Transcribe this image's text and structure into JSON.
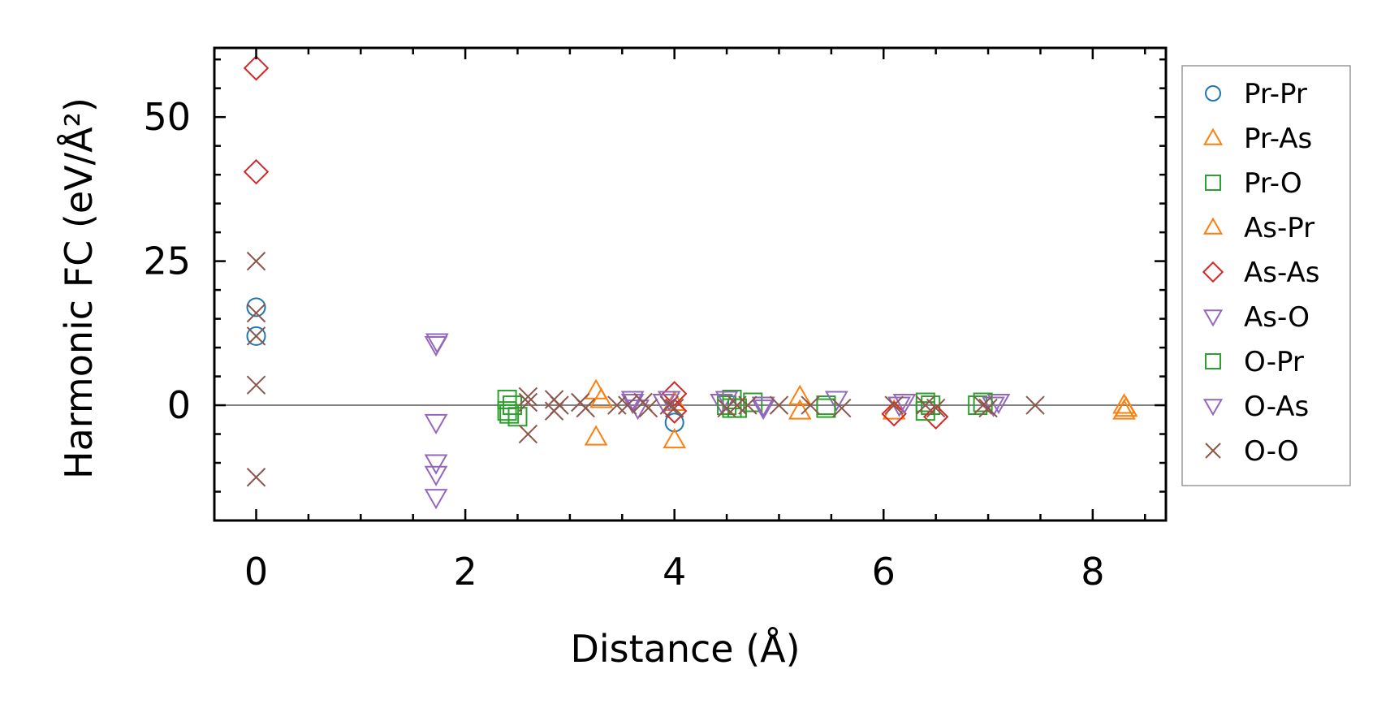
{
  "chart_data": {
    "type": "scatter",
    "title": "",
    "xlabel": "Distance (Å)",
    "ylabel": "Harmonic FC (eV/Å²)",
    "xlim": [
      -0.4,
      8.7
    ],
    "ylim": [
      -20,
      62
    ],
    "xticks": [
      "0",
      "2",
      "4",
      "6",
      "8"
    ],
    "yticks": [
      "0",
      "25",
      "50"
    ],
    "grid": false,
    "legend_position": "outside-right",
    "reference_line_y": 0,
    "series": [
      {
        "name": "Pr-Pr",
        "marker": "circle",
        "color": "#1f77b4",
        "points": [
          [
            0,
            17
          ],
          [
            0,
            12
          ],
          [
            4.0,
            -3
          ]
        ]
      },
      {
        "name": "Pr-As",
        "marker": "triangle-up",
        "color": "#ff7f0e",
        "points": [
          [
            3.25,
            2.5
          ],
          [
            3.25,
            -5.5
          ],
          [
            4.0,
            -6
          ],
          [
            5.2,
            1.5
          ],
          [
            5.2,
            -1
          ],
          [
            8.3,
            0
          ],
          [
            8.3,
            -1
          ]
        ]
      },
      {
        "name": "Pr-O",
        "marker": "square",
        "color": "#2ca02c",
        "points": [
          [
            2.4,
            1
          ],
          [
            2.4,
            -1
          ],
          [
            2.45,
            0
          ],
          [
            2.5,
            -2
          ],
          [
            4.55,
            1
          ],
          [
            4.55,
            -0.5
          ],
          [
            4.75,
            0.5
          ],
          [
            5.45,
            0
          ],
          [
            6.4,
            0.5
          ],
          [
            6.45,
            0
          ],
          [
            6.9,
            0
          ]
        ]
      },
      {
        "name": "As-Pr",
        "marker": "triangle-up",
        "color": "#ff7f0e",
        "points": [
          [
            3.3,
            1
          ],
          [
            4.0,
            0.5
          ],
          [
            6.1,
            -1
          ],
          [
            8.32,
            -0.5
          ]
        ]
      },
      {
        "name": "As-As",
        "marker": "diamond",
        "color": "#d62728",
        "points": [
          [
            0,
            58.5
          ],
          [
            0,
            40.5
          ],
          [
            4.0,
            2
          ],
          [
            4.0,
            -1
          ],
          [
            6.1,
            -1.5
          ],
          [
            6.5,
            -2
          ]
        ]
      },
      {
        "name": "As-O",
        "marker": "triangle-down",
        "color": "#9467bd",
        "points": [
          [
            1.72,
            10.5
          ],
          [
            1.72,
            -3
          ],
          [
            1.72,
            -10
          ],
          [
            1.72,
            -12
          ],
          [
            1.72,
            -16
          ],
          [
            3.6,
            0.5
          ],
          [
            3.65,
            -0.5
          ],
          [
            3.95,
            1
          ],
          [
            4.45,
            0.5
          ],
          [
            4.85,
            -0.5
          ],
          [
            5.55,
            1
          ],
          [
            6.15,
            0
          ],
          [
            7.1,
            0.5
          ]
        ]
      },
      {
        "name": "O-Pr",
        "marker": "square",
        "color": "#2ca02c",
        "points": [
          [
            2.42,
            -1.5
          ],
          [
            4.5,
            0
          ],
          [
            4.6,
            -0.5
          ],
          [
            5.45,
            -0.5
          ],
          [
            6.4,
            -1
          ],
          [
            6.95,
            0.5
          ]
        ]
      },
      {
        "name": "O-As",
        "marker": "triangle-down",
        "color": "#9467bd",
        "points": [
          [
            1.73,
            11
          ],
          [
            3.6,
            1
          ],
          [
            3.9,
            0.5
          ],
          [
            4.5,
            1
          ],
          [
            4.85,
            0
          ],
          [
            6.2,
            0.5
          ],
          [
            7.05,
            0
          ]
        ]
      },
      {
        "name": "O-O",
        "marker": "x",
        "color": "#8c564b",
        "points": [
          [
            0,
            25
          ],
          [
            0,
            16
          ],
          [
            0,
            12
          ],
          [
            0,
            3.5
          ],
          [
            0,
            -12.5
          ],
          [
            2.6,
            1.5
          ],
          [
            2.6,
            0.5
          ],
          [
            2.6,
            -5
          ],
          [
            2.85,
            1
          ],
          [
            2.85,
            -1
          ],
          [
            2.9,
            0
          ],
          [
            3.1,
            0.5
          ],
          [
            3.15,
            -0.5
          ],
          [
            3.45,
            0
          ],
          [
            3.55,
            0
          ],
          [
            3.7,
            0.5
          ],
          [
            3.75,
            -0.5
          ],
          [
            3.95,
            0
          ],
          [
            4.0,
            -0.5
          ],
          [
            4.5,
            -0.5
          ],
          [
            4.6,
            0
          ],
          [
            4.7,
            0
          ],
          [
            5.0,
            0
          ],
          [
            5.3,
            0
          ],
          [
            5.6,
            -0.5
          ],
          [
            6.1,
            0
          ],
          [
            6.4,
            0
          ],
          [
            6.5,
            -0.5
          ],
          [
            6.95,
            0
          ],
          [
            7.0,
            -0.5
          ],
          [
            7.45,
            0
          ]
        ]
      }
    ]
  }
}
